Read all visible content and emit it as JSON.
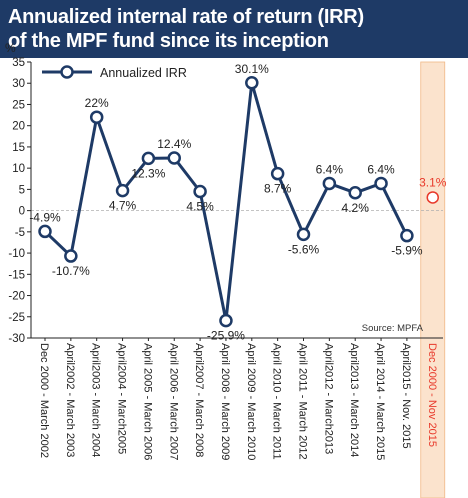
{
  "header": {
    "title_line1": "Annualized internal rate of return (IRR)",
    "title_line2": "of the MPF fund since its inception"
  },
  "chart_data": {
    "type": "line",
    "title": "Annualized internal rate of return (IRR) of the MPF fund since its inception",
    "ylabel": "%",
    "ylim": [
      -30,
      35
    ],
    "yticks": [
      35,
      30,
      25,
      20,
      15,
      10,
      5,
      0,
      -5,
      -10,
      -15,
      -20,
      -25,
      -30
    ],
    "grid": false,
    "legend_position": "top-left",
    "source": "Source: MPFA",
    "categories": [
      "Dec 2000 - March 2002",
      "April2002 - March 2003",
      "April2003 - March 2004",
      "April2004 - March2005",
      "April 2005 - March 2006",
      "April 2006 - March 2007",
      "April2007 - March 2008",
      "April 2008 - March 2009",
      "April 2009 - March 2010",
      "April 2010 - March 2011",
      "April 2011 - March 2012",
      "April2012 - March2013",
      "April2013 - March 2014",
      "April 2014 - March 2015",
      "April2015 - Nov. 2015"
    ],
    "series": [
      {
        "name": "Annualized IRR",
        "values": [
          -4.9,
          -10.7,
          22,
          4.7,
          12.3,
          12.4,
          4.5,
          -25.9,
          30.1,
          8.7,
          -5.6,
          6.4,
          4.2,
          6.4,
          -5.9
        ],
        "labels": [
          "-4.9%",
          "-10.7%",
          "22%",
          "4.7%",
          "12.3%",
          "12.4%",
          "4.5%",
          "-25.9%",
          "30.1%",
          "8.7%",
          "-5.6%",
          "6.4%",
          "4.2%",
          "6.4%",
          "-5.9%"
        ],
        "color": "#1e3a66"
      }
    ],
    "highlight": {
      "category": "Dec 2000 - Nov 2015",
      "value": 3.1,
      "label": "3.1%",
      "color": "#e8392a",
      "band_color": "#fbe3cd"
    }
  }
}
